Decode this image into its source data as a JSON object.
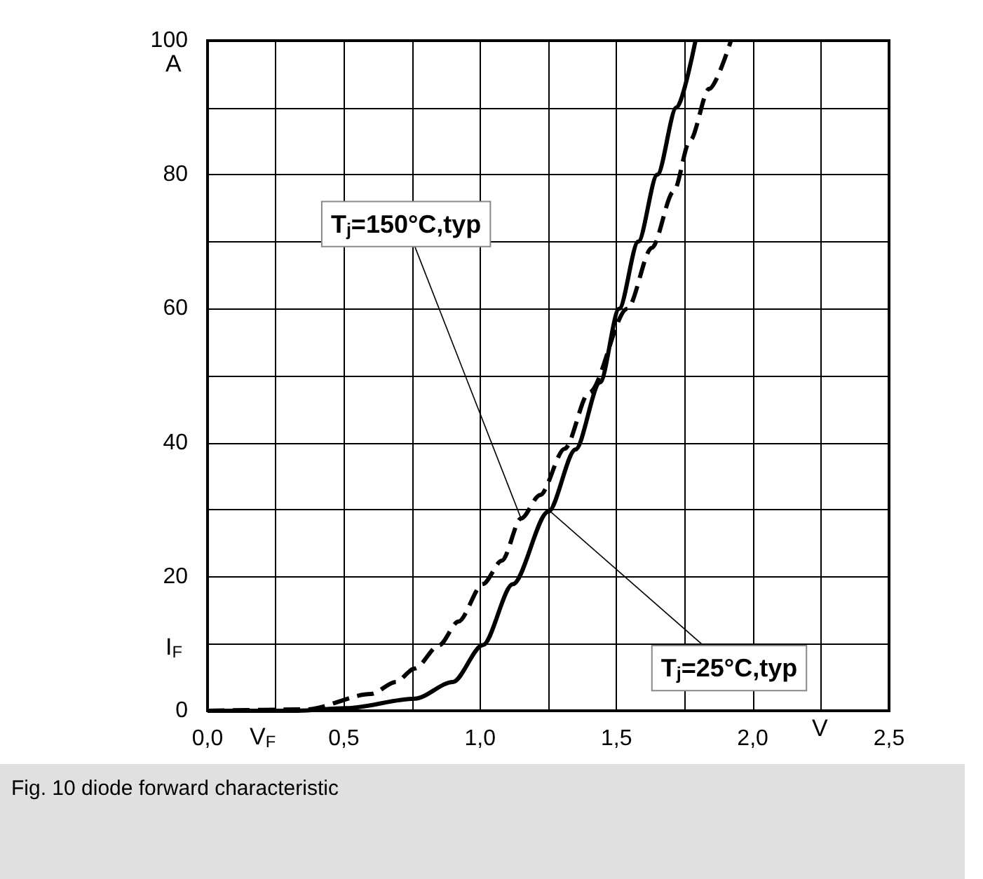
{
  "chart_data": {
    "type": "line",
    "title": "Fig. 10 diode forward characteristic",
    "xlabel": "V$_{F}$",
    "ylabel": "I$_{F}$",
    "annotations": [
      "A",
      "V",
      {
        "text": "T$_{j}$=150°C,typ",
        "x": 1.15,
        "y": 28.7
      },
      {
        "text": "T$_{j}$=25°C,typ",
        "x": 1.25,
        "y": 30
      }
    ],
    "xlim": [
      0,
      2.5
    ],
    "ylim": [
      0,
      100
    ],
    "xticks": [
      {
        "value": 0,
        "label": "0,0"
      },
      {
        "value": 0.25,
        "label": null
      },
      {
        "value": 0.5,
        "label": "0,5"
      },
      {
        "value": 0.75,
        "label": null
      },
      {
        "value": 1,
        "label": "1,0"
      },
      {
        "value": 1.25,
        "label": null
      },
      {
        "value": 1.5,
        "label": "1,5"
      },
      {
        "value": 1.75,
        "label": null
      },
      {
        "value": 2,
        "label": "2,0"
      },
      {
        "value": 2.25,
        "label": null
      },
      {
        "value": 2.5,
        "label": "2,5"
      }
    ],
    "yticks": [
      0,
      {
        "value": 10,
        "label": null
      },
      20,
      {
        "value": 30,
        "label": null
      },
      40,
      {
        "value": 50,
        "label": null
      },
      60,
      {
        "value": 70,
        "label": null
      },
      80,
      {
        "value": 90,
        "label": null
      },
      100
    ],
    "grid": true,
    "marker": "none",
    "series": [
      {
        "color": "#000000",
        "line_style": "solid",
        "x": [
          0,
          0.33,
          0.51,
          0.76,
          0.9,
          1.01,
          1.12,
          1.25,
          1.35,
          1.44,
          1.51,
          1.58,
          1.65,
          1.72,
          1.79
        ],
        "values": [
          0,
          0,
          0.4,
          1.8,
          4.3,
          9.8,
          18.9,
          29.7,
          39,
          49,
          60,
          70,
          80,
          90,
          100
        ]
      },
      {
        "color": "#000000",
        "line_style": "dashed",
        "x": [
          0,
          0.36,
          0.6,
          0.69,
          0.76,
          0.85,
          0.92,
          1.01,
          1.08,
          1.15,
          1.22,
          1.31,
          1.4,
          1.54,
          1.63,
          1.71,
          1.77,
          1.84,
          1.92
        ],
        "values": [
          0,
          0.2,
          2.5,
          4.3,
          6.3,
          9.8,
          13.3,
          18.9,
          22.4,
          28.7,
          32.2,
          39.1,
          47.5,
          60,
          69.1,
          77.5,
          85.1,
          92.8,
          100
        ]
      }
    ]
  }
}
